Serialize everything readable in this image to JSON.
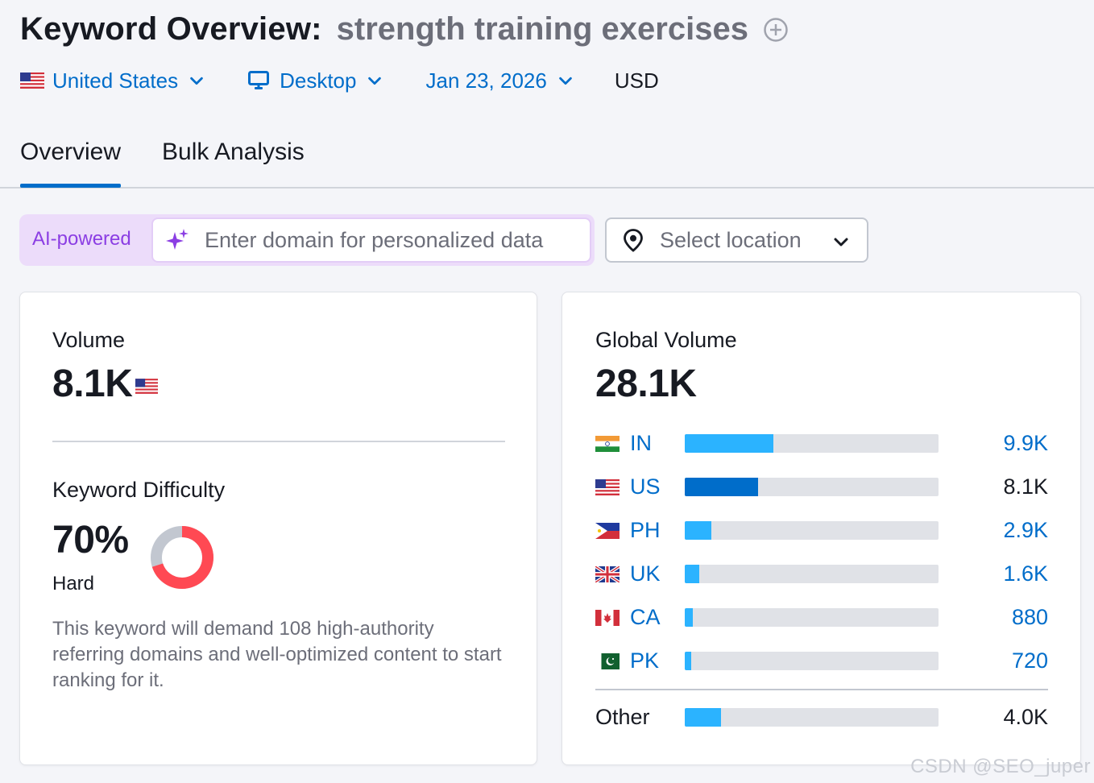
{
  "header": {
    "title": "Keyword Overview:",
    "keyword": "strength training exercises"
  },
  "filters": {
    "country": "United States",
    "device": "Desktop",
    "date": "Jan 23, 2026",
    "currency": "USD"
  },
  "tabs": [
    {
      "label": "Overview",
      "active": true
    },
    {
      "label": "Bulk Analysis",
      "active": false
    }
  ],
  "ai": {
    "badge": "AI-powered",
    "domain_placeholder": "Enter domain for personalized data",
    "location_placeholder": "Select location"
  },
  "volume": {
    "label": "Volume",
    "value": "8.1K"
  },
  "keyword_difficulty": {
    "label": "Keyword Difficulty",
    "value": "70%",
    "percent": 70,
    "level": "Hard",
    "description": "This keyword will demand 108 high-authority referring domains and well-optimized content to start ranking for it.",
    "color": "#ff4953"
  },
  "global_volume": {
    "label": "Global Volume",
    "value": "28.1K",
    "countries": [
      {
        "code": "IN",
        "value": "9.9K",
        "share": 0.35,
        "flag": "india-flag-icon",
        "highlight": false
      },
      {
        "code": "US",
        "value": "8.1K",
        "share": 0.29,
        "flag": "us-flag-icon",
        "highlight": true
      },
      {
        "code": "PH",
        "value": "2.9K",
        "share": 0.105,
        "flag": "philippines-flag-icon",
        "highlight": false
      },
      {
        "code": "UK",
        "value": "1.6K",
        "share": 0.057,
        "flag": "uk-flag-icon",
        "highlight": false
      },
      {
        "code": "CA",
        "value": "880",
        "share": 0.031,
        "flag": "canada-flag-icon",
        "highlight": false
      },
      {
        "code": "PK",
        "value": "720",
        "share": 0.026,
        "flag": "pakistan-flag-icon",
        "highlight": false
      }
    ],
    "other": {
      "label": "Other",
      "value": "4.0K",
      "share": 0.142
    }
  },
  "colors": {
    "accent": "#006dca",
    "bar": "#2bb3ff",
    "ai": "#8b3ee3"
  },
  "watermark": "CSDN @SEO_juper"
}
